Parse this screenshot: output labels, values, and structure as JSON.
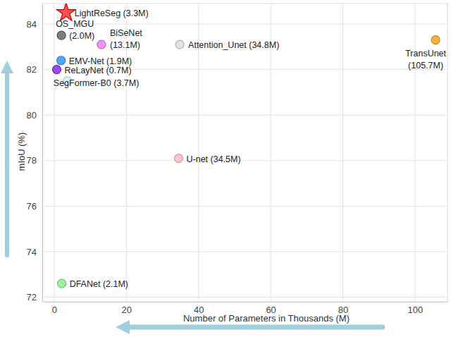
{
  "chart_data": {
    "type": "scatter",
    "x_label": "Number of Parameters in Thousands (M)",
    "y_label": "mIoU (%)",
    "xlim": [
      -3.3,
      109
    ],
    "xticks": [
      0,
      20,
      40,
      60,
      80,
      100
    ],
    "ylim": [
      71.8,
      84.9
    ],
    "yticks": [
      72,
      74,
      76,
      78,
      80,
      82,
      84
    ],
    "grid": true,
    "series": [
      {
        "name": "LightReSeg (3.3M)",
        "color": "#ff3333",
        "marker": "star",
        "x": [
          3.3
        ],
        "values": [
          84.5
        ]
      },
      {
        "name": "OS_MGU (2.0M)",
        "color": "#666666",
        "marker": "circle",
        "x": [
          2.0
        ],
        "values": [
          83.5
        ]
      },
      {
        "name": "BiSeNet (13.1M)",
        "color": "#ee82ee",
        "marker": "circle",
        "x": [
          13.1
        ],
        "values": [
          83.1
        ]
      },
      {
        "name": "Attention_Unet (34.8M)",
        "color": "#dddddd",
        "marker": "circle",
        "x": [
          34.8
        ],
        "values": [
          83.1
        ]
      },
      {
        "name": "EMV-Net (1.9M)",
        "color": "#3399ff",
        "marker": "circle",
        "x": [
          1.9
        ],
        "values": [
          82.4
        ]
      },
      {
        "name": "ReLayNet (0.7M)",
        "color": "#8a2be2",
        "marker": "circle",
        "x": [
          0.7
        ],
        "values": [
          82.0
        ]
      },
      {
        "name": "SegFormer-B0 (3.7M)",
        "color": "#d8fbff",
        "marker": "circle",
        "x": [
          3.7
        ],
        "values": [
          81.5
        ]
      },
      {
        "name": "U-net (34.5M)",
        "color": "#ffbcc4",
        "marker": "circle",
        "x": [
          34.5
        ],
        "values": [
          78.1
        ]
      },
      {
        "name": "TransUnet (105.7M)",
        "color": "#f5a623",
        "marker": "circle",
        "x": [
          105.7
        ],
        "values": [
          83.3
        ]
      },
      {
        "name": "DFANet (2.1M)",
        "color": "#90ee90",
        "marker": "circle",
        "x": [
          2.1
        ],
        "values": [
          72.6
        ]
      }
    ]
  }
}
